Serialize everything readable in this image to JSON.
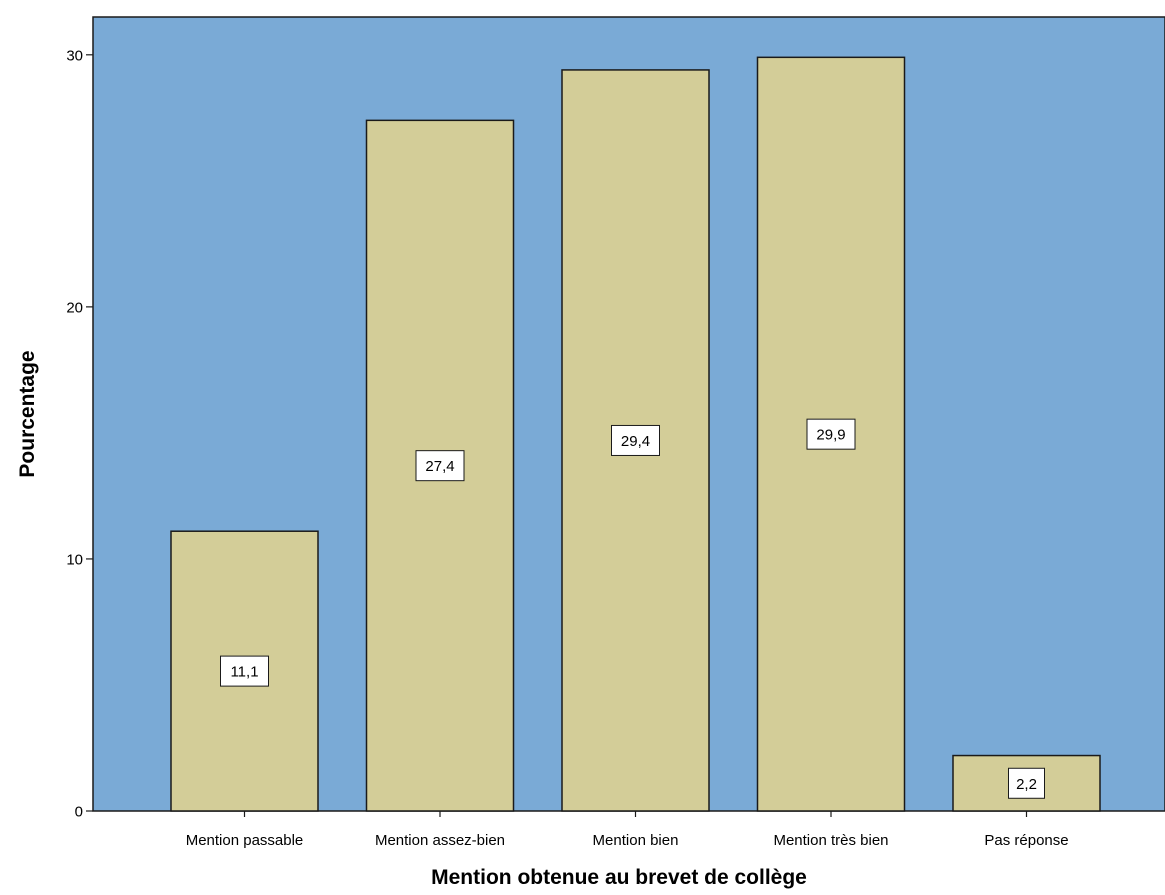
{
  "chart_data": {
    "type": "bar",
    "categories": [
      "Mention passable",
      "Mention assez-bien",
      "Mention bien",
      "Mention très bien",
      "Pas réponse"
    ],
    "values": [
      11.1,
      27.4,
      29.4,
      29.9,
      2.2
    ],
    "data_labels": [
      "11,1",
      "27,4",
      "29,4",
      "29,9",
      "2,2"
    ],
    "title": "",
    "xlabel": "Mention obtenue au brevet de collège",
    "ylabel": "Pourcentage",
    "ylim": [
      0,
      31.5
    ],
    "yticks": [
      0,
      10,
      20,
      30
    ],
    "ytick_labels": [
      "0",
      "10",
      "20",
      "30"
    ],
    "grid": false,
    "legend": "none",
    "colors": {
      "plot_background": "#7aaad6",
      "bar_fill": "#d3cd98",
      "bar_stroke": "#1a1a1a",
      "label_box": "#ffffff"
    }
  }
}
